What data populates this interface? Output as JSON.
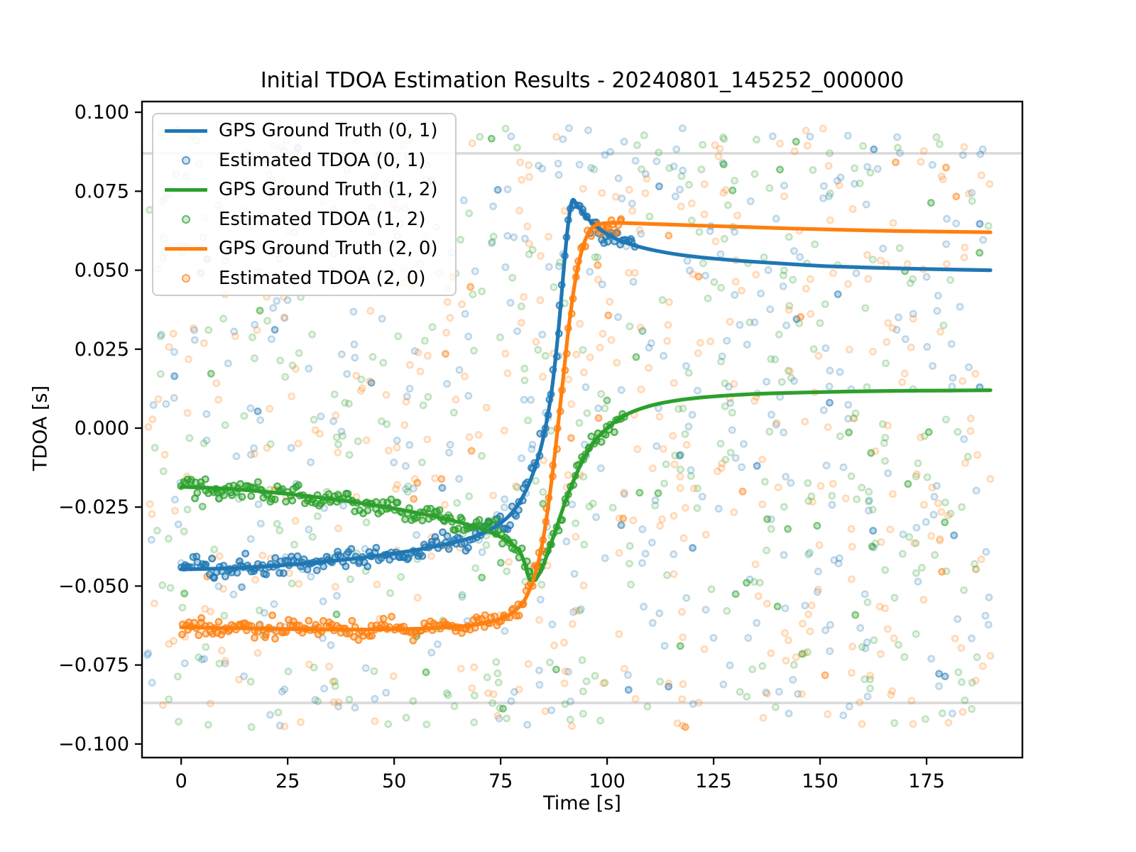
{
  "title": "Initial TDOA Estimation Results - 20240801_145252_000000",
  "chart_data": {
    "type": "line",
    "title": "Initial TDOA Estimation Results - 20240801_145252_000000",
    "xlabel": "Time [s]",
    "ylabel": "TDOA [s]",
    "xlim": [
      -9.2,
      197.5
    ],
    "ylim": [
      -0.1043,
      0.1034
    ],
    "x_ticks": [
      0,
      25,
      50,
      75,
      100,
      125,
      150,
      175
    ],
    "x_tick_labels": [
      "0",
      "25",
      "50",
      "75",
      "100",
      "125",
      "150",
      "175"
    ],
    "y_ticks": [
      0.1,
      0.075,
      0.05,
      0.025,
      0.0,
      -0.025,
      -0.05,
      -0.075,
      -0.1
    ],
    "y_tick_labels": [
      "0.100",
      "0.075",
      "0.050",
      "0.025",
      "0.000",
      "−0.025",
      "−0.050",
      "−0.075",
      "−0.100"
    ],
    "grid": "off",
    "threshold_lines": {
      "values": [
        0.087,
        -0.087
      ],
      "color": "#d9d9d9",
      "width": 3.5
    },
    "legend_position": "upper-left",
    "series": [
      {
        "name": "GPS Ground Truth (0, 1)",
        "type": "line",
        "color": "#1f77b4",
        "points": [
          [
            0,
            -0.0447
          ],
          [
            8,
            -0.0445
          ],
          [
            16,
            -0.0441
          ],
          [
            24,
            -0.0434
          ],
          [
            32,
            -0.0425
          ],
          [
            40,
            -0.0414
          ],
          [
            48,
            -0.04
          ],
          [
            55,
            -0.0386
          ],
          [
            61,
            -0.0371
          ],
          [
            66,
            -0.0355
          ],
          [
            70,
            -0.0338
          ],
          [
            73,
            -0.0318
          ],
          [
            76,
            -0.029
          ],
          [
            78,
            -0.0262
          ],
          [
            80,
            -0.0222
          ],
          [
            82,
            -0.0165
          ],
          [
            84,
            -0.0085
          ],
          [
            85.5,
            0.0
          ],
          [
            87,
            0.012
          ],
          [
            88.5,
            0.03
          ],
          [
            89.8,
            0.05
          ],
          [
            90.8,
            0.064
          ],
          [
            91.8,
            0.072
          ],
          [
            93,
            0.0705
          ],
          [
            94.5,
            0.0678
          ],
          [
            96.5,
            0.065
          ],
          [
            99,
            0.0623
          ],
          [
            102,
            0.06
          ],
          [
            106,
            0.058
          ],
          [
            111,
            0.0563
          ],
          [
            117,
            0.0549
          ],
          [
            124,
            0.0538
          ],
          [
            132,
            0.0529
          ],
          [
            141,
            0.0521
          ],
          [
            151,
            0.0513
          ],
          [
            162,
            0.0508
          ],
          [
            174,
            0.0504
          ],
          [
            190,
            0.05
          ]
        ]
      },
      {
        "name": "Estimated TDOA (0, 1)",
        "type": "scatter",
        "color": "#1f77b4",
        "tracks_series": "GPS Ground Truth (0, 1)",
        "track_t_range": [
          0,
          106.5
        ],
        "track_step": 0.5,
        "track_jitter_sigma": 0.0013
      },
      {
        "name": "GPS Ground Truth (1, 2)",
        "type": "line",
        "color": "#2ca02c",
        "points": [
          [
            0,
            -0.0186
          ],
          [
            8,
            -0.019
          ],
          [
            16,
            -0.0197
          ],
          [
            24,
            -0.0207
          ],
          [
            32,
            -0.0219
          ],
          [
            40,
            -0.0233
          ],
          [
            48,
            -0.025
          ],
          [
            55,
            -0.0267
          ],
          [
            61,
            -0.0284
          ],
          [
            66,
            -0.0301
          ],
          [
            70,
            -0.0317
          ],
          [
            73,
            -0.0332
          ],
          [
            76,
            -0.0352
          ],
          [
            78,
            -0.0371
          ],
          [
            79.5,
            -0.0391
          ],
          [
            80.7,
            -0.043
          ],
          [
            81.6,
            -0.0473
          ],
          [
            82.4,
            -0.0483
          ],
          [
            83.4,
            -0.0475
          ],
          [
            84.6,
            -0.0447
          ],
          [
            86,
            -0.0398
          ],
          [
            88,
            -0.032
          ],
          [
            90,
            -0.024
          ],
          [
            92,
            -0.017
          ],
          [
            94,
            -0.011
          ],
          [
            96,
            -0.0062
          ],
          [
            98,
            -0.0027
          ],
          [
            100,
            0.0
          ],
          [
            102.5,
            0.0026
          ],
          [
            105,
            0.0046
          ],
          [
            108,
            0.0062
          ],
          [
            112,
            0.0077
          ],
          [
            117,
            0.0089
          ],
          [
            123,
            0.0098
          ],
          [
            130,
            0.0105
          ],
          [
            138,
            0.011
          ],
          [
            147,
            0.0113
          ],
          [
            157,
            0.0116
          ],
          [
            168,
            0.0118
          ],
          [
            180,
            0.0119
          ],
          [
            190,
            0.012
          ]
        ]
      },
      {
        "name": "Estimated TDOA (1, 2)",
        "type": "scatter",
        "color": "#2ca02c",
        "tracks_series": "GPS Ground Truth (1, 2)",
        "track_t_range": [
          0,
          104
        ],
        "track_step": 0.5,
        "track_jitter_sigma": 0.0013
      },
      {
        "name": "GPS Ground Truth (2, 0)",
        "type": "line",
        "color": "#ff7f0e",
        "points": [
          [
            0,
            -0.0631
          ],
          [
            12,
            -0.0633
          ],
          [
            24,
            -0.0636
          ],
          [
            36,
            -0.0638
          ],
          [
            48,
            -0.0637
          ],
          [
            56,
            -0.0635
          ],
          [
            62,
            -0.0631
          ],
          [
            67,
            -0.0626
          ],
          [
            71,
            -0.0618
          ],
          [
            74,
            -0.0608
          ],
          [
            76.5,
            -0.0595
          ],
          [
            78.5,
            -0.0577
          ],
          [
            80.5,
            -0.0547
          ],
          [
            82,
            -0.0505
          ],
          [
            83.5,
            -0.0443
          ],
          [
            85,
            -0.035
          ],
          [
            86.5,
            -0.0215
          ],
          [
            88,
            -0.005
          ],
          [
            89.5,
            0.0135
          ],
          [
            91,
            0.032
          ],
          [
            92.5,
            0.0465
          ],
          [
            94,
            0.056
          ],
          [
            95.5,
            0.0615
          ],
          [
            97,
            0.064
          ],
          [
            99,
            0.0648
          ],
          [
            102,
            0.065
          ],
          [
            107,
            0.0648
          ],
          [
            114,
            0.0645
          ],
          [
            122,
            0.0641
          ],
          [
            132,
            0.0637
          ],
          [
            143,
            0.0632
          ],
          [
            155,
            0.0628
          ],
          [
            168,
            0.0624
          ],
          [
            180,
            0.0622
          ],
          [
            190,
            0.062
          ]
        ]
      },
      {
        "name": "Estimated TDOA (2, 0)",
        "type": "scatter",
        "color": "#ff7f0e",
        "tracks_series": "GPS Ground Truth (2, 0)",
        "track_t_range": [
          0,
          103.5
        ],
        "track_step": 0.5,
        "track_jitter_sigma": 0.0013
      }
    ],
    "outlier_noise": {
      "description": "uniform random estimated-TDOA outliers per pair",
      "count_per_pair": 430,
      "t_range": [
        -8,
        190
      ],
      "tdoa_range": [
        -0.095,
        0.095
      ],
      "seed": 1234567
    }
  },
  "legend": {
    "items": [
      {
        "label": "GPS Ground Truth (0, 1)",
        "swatch": "line",
        "color": "#1f77b4"
      },
      {
        "label": "Estimated TDOA (0, 1)",
        "swatch": "marker",
        "color": "#1f77b4"
      },
      {
        "label": "GPS Ground Truth (1, 2)",
        "swatch": "line",
        "color": "#2ca02c"
      },
      {
        "label": "Estimated TDOA (1, 2)",
        "swatch": "marker",
        "color": "#2ca02c"
      },
      {
        "label": "GPS Ground Truth (2, 0)",
        "swatch": "line",
        "color": "#ff7f0e"
      },
      {
        "label": "Estimated TDOA (2, 0)",
        "swatch": "marker",
        "color": "#ff7f0e"
      }
    ]
  },
  "colors": {
    "pair_0_1": "#1f77b4",
    "pair_1_2": "#2ca02c",
    "pair_2_0": "#ff7f0e",
    "threshold_line": "#d9d9d9",
    "spine": "#000000",
    "text": "#000000"
  }
}
